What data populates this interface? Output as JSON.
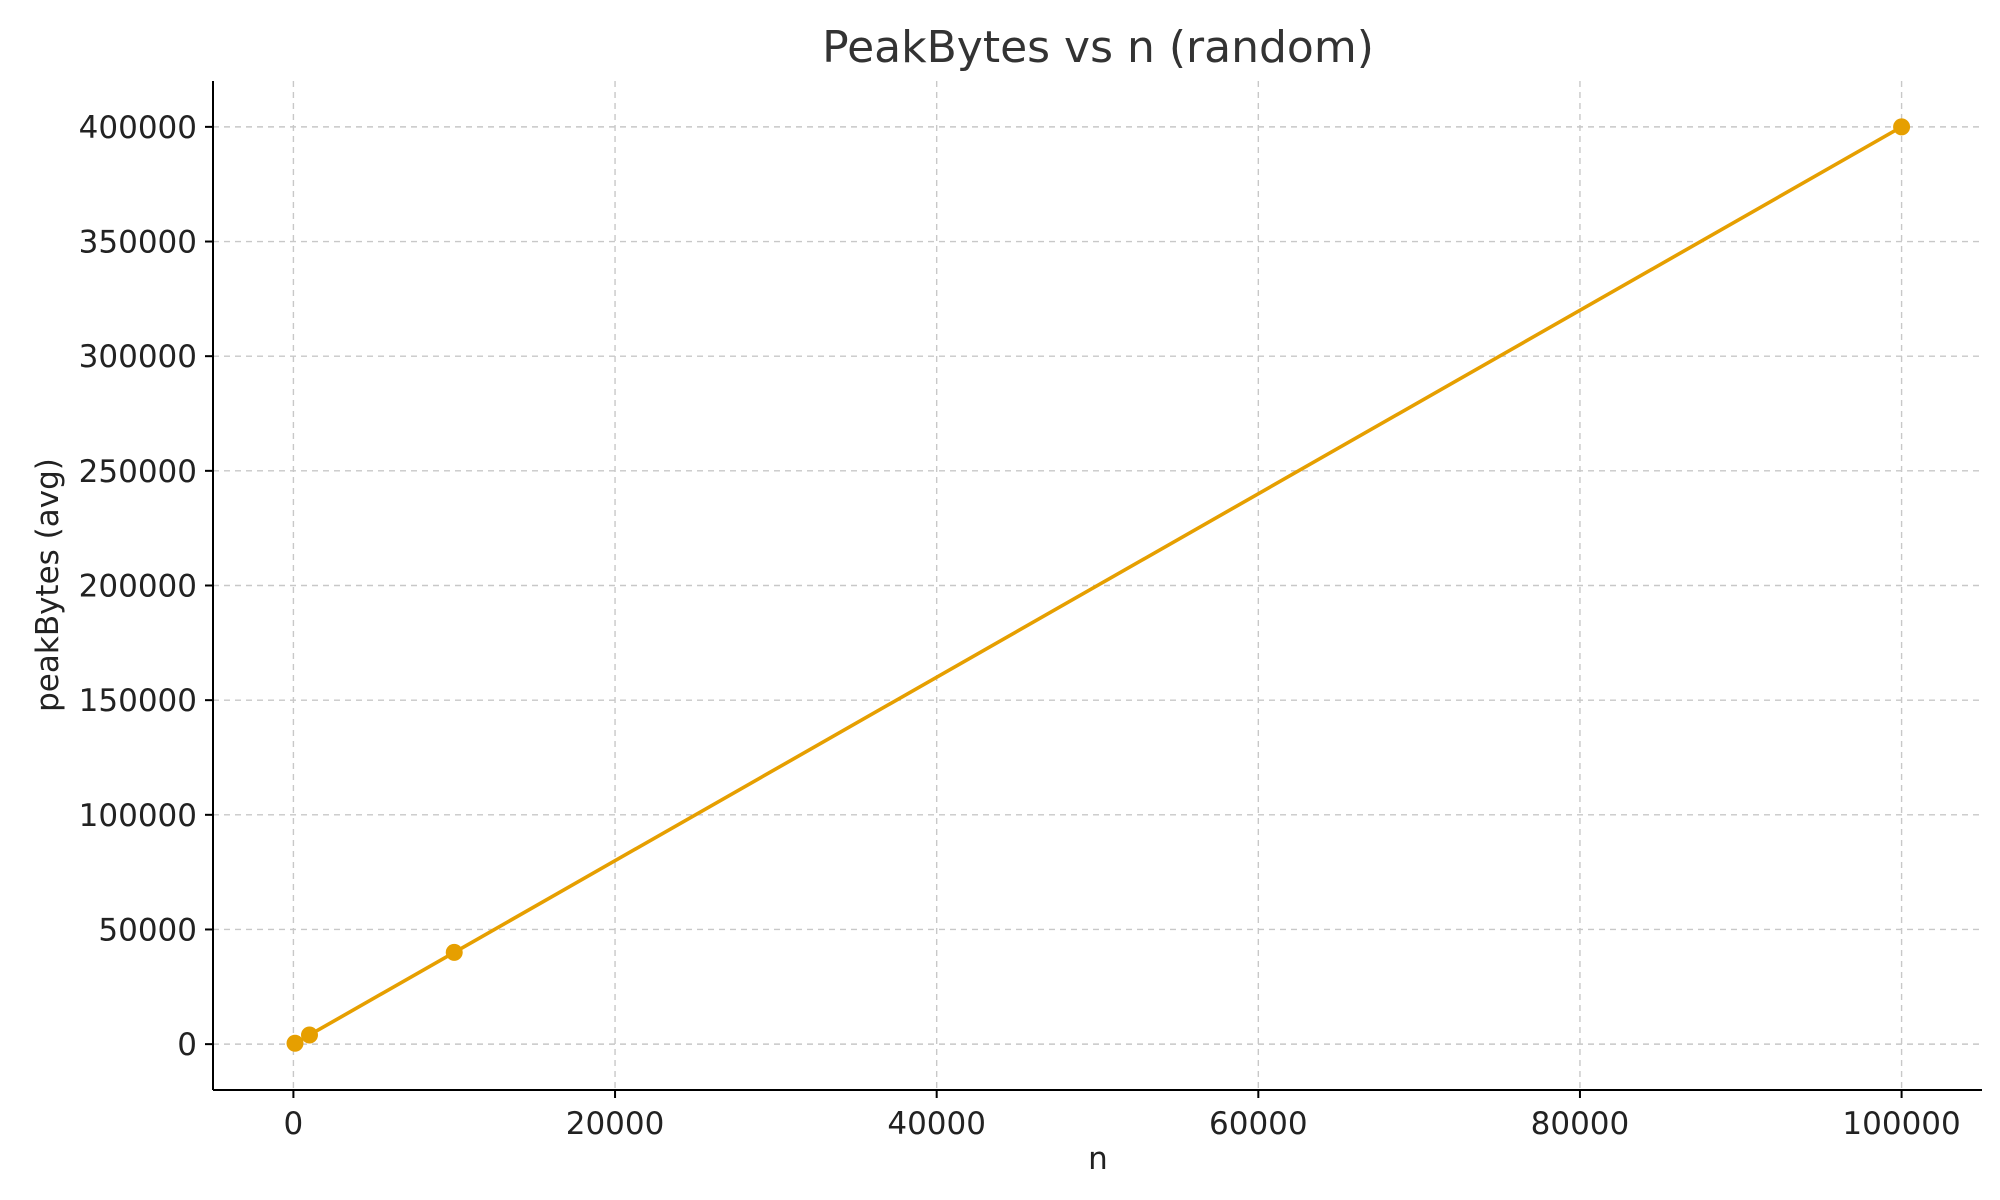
{
  "chart_data": {
    "type": "line",
    "title": "PeakBytes vs n (random)",
    "xlabel": "n",
    "ylabel": "peakBytes (avg)",
    "xlim": [
      -5000,
      105000
    ],
    "ylim": [
      -20000,
      420000
    ],
    "x_ticks": [
      0,
      20000,
      40000,
      60000,
      80000,
      100000
    ],
    "y_ticks": [
      0,
      50000,
      100000,
      150000,
      200000,
      250000,
      300000,
      350000,
      400000
    ],
    "grid": true,
    "series": [
      {
        "color": "#E69F00",
        "marker": "circle",
        "x": [
          100,
          1000,
          10000,
          100000
        ],
        "y": [
          400,
          4000,
          40000,
          400000
        ]
      }
    ]
  }
}
